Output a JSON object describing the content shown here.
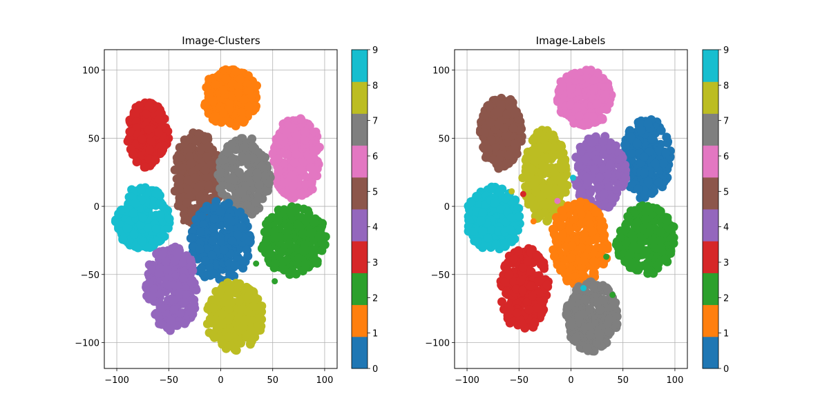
{
  "colormap": {
    "name": "tab10",
    "colors": [
      "#1f77b4",
      "#ff7f0e",
      "#2ca02c",
      "#d62728",
      "#9467bd",
      "#8c564b",
      "#e377c2",
      "#7f7f7f",
      "#bcbd22",
      "#17becf"
    ],
    "ticks": [
      "0",
      "1",
      "2",
      "3",
      "4",
      "5",
      "6",
      "7",
      "8",
      "9"
    ]
  },
  "chart_data": [
    {
      "type": "scatter",
      "title": "Image-Clusters",
      "xlabel": "",
      "ylabel": "",
      "xlim": [
        -112,
        112
      ],
      "ylim": [
        -119,
        115
      ],
      "xticks": [
        -100,
        -50,
        0,
        50,
        100
      ],
      "yticks": [
        -100,
        -50,
        0,
        50,
        100
      ],
      "xtick_labels": [
        "−100",
        "−50",
        "0",
        "50",
        "100"
      ],
      "ytick_labels": [
        "−100",
        "−50",
        "0",
        "50",
        "100"
      ],
      "grid": true,
      "colorbar": {
        "min": 0,
        "max": 9
      },
      "clusters": [
        {
          "label": 1,
          "center": [
            10,
            80
          ],
          "radius": [
            27,
            22
          ]
        },
        {
          "label": 3,
          "center": [
            -70,
            52
          ],
          "radius": [
            20,
            26
          ]
        },
        {
          "label": 6,
          "center": [
            73,
            35
          ],
          "radius": [
            24,
            32
          ]
        },
        {
          "label": 5,
          "center": [
            -23,
            20
          ],
          "radius": [
            23,
            37
          ]
        },
        {
          "label": 7,
          "center": [
            23,
            22
          ],
          "radius": [
            26,
            30
          ]
        },
        {
          "label": 9,
          "center": [
            -75,
            -9
          ],
          "radius": [
            27,
            24
          ]
        },
        {
          "label": 0,
          "center": [
            0,
            -26
          ],
          "radius": [
            30,
            32
          ]
        },
        {
          "label": 2,
          "center": [
            70,
            -25
          ],
          "radius": [
            32,
            26
          ]
        },
        {
          "label": 4,
          "center": [
            -47,
            -60
          ],
          "radius": [
            26,
            32
          ]
        },
        {
          "label": 8,
          "center": [
            13,
            -80
          ],
          "radius": [
            28,
            26
          ]
        }
      ],
      "outliers": [
        {
          "x": -36,
          "y": -11,
          "label": 5
        },
        {
          "x": 52,
          "y": -55,
          "label": 2
        },
        {
          "x": 34,
          "y": -42,
          "label": 2
        }
      ]
    },
    {
      "type": "scatter",
      "title": "Image-Labels",
      "xlabel": "",
      "ylabel": "",
      "xlim": [
        -112,
        112
      ],
      "ylim": [
        -119,
        115
      ],
      "xticks": [
        -100,
        -50,
        0,
        50,
        100
      ],
      "yticks": [
        -100,
        -50,
        0,
        50,
        100
      ],
      "xtick_labels": [
        "−100",
        "−50",
        "0",
        "50",
        "100"
      ],
      "ytick_labels": [
        "−100",
        "−50",
        "0",
        "50",
        "100"
      ],
      "grid": true,
      "colorbar": {
        "min": 0,
        "max": 9
      },
      "clusters": [
        {
          "label": 6,
          "center": [
            13,
            80
          ],
          "radius": [
            27,
            22
          ]
        },
        {
          "label": 5,
          "center": [
            -67,
            54
          ],
          "radius": [
            22,
            27
          ]
        },
        {
          "label": 0,
          "center": [
            73,
            35
          ],
          "radius": [
            24,
            30
          ]
        },
        {
          "label": 8,
          "center": [
            -25,
            22
          ],
          "radius": [
            22,
            35
          ]
        },
        {
          "label": 4,
          "center": [
            28,
            25
          ],
          "radius": [
            26,
            28
          ]
        },
        {
          "label": 9,
          "center": [
            -75,
            -9
          ],
          "radius": [
            27,
            24
          ]
        },
        {
          "label": 1,
          "center": [
            8,
            -27
          ],
          "radius": [
            28,
            32
          ]
        },
        {
          "label": 2,
          "center": [
            72,
            -25
          ],
          "radius": [
            30,
            26
          ]
        },
        {
          "label": 3,
          "center": [
            -45,
            -60
          ],
          "radius": [
            24,
            32
          ]
        },
        {
          "label": 7,
          "center": [
            20,
            -80
          ],
          "radius": [
            26,
            27
          ]
        }
      ],
      "outliers": [
        {
          "x": -57,
          "y": 11,
          "label": 8
        },
        {
          "x": -46,
          "y": 9,
          "label": 3
        },
        {
          "x": -36,
          "y": -11,
          "label": 1
        },
        {
          "x": 2,
          "y": 21,
          "label": 9
        },
        {
          "x": 12,
          "y": -60,
          "label": 9
        },
        {
          "x": 34,
          "y": -37,
          "label": 2
        },
        {
          "x": -13,
          "y": 4,
          "label": 6
        },
        {
          "x": 40,
          "y": -65,
          "label": 2
        }
      ]
    }
  ]
}
